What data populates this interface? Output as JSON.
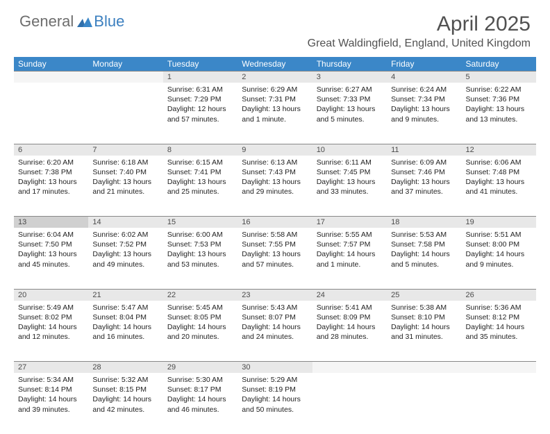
{
  "logo": {
    "text_general": "General",
    "text_blue": "Blue"
  },
  "title": "April 2025",
  "location": "Great Waldingfield, England, United Kingdom",
  "colors": {
    "header_bg": "#3b87c8",
    "header_text": "#ffffff",
    "daynum_bg": "#e8e8e8",
    "daynum_hl": "#d0d0d0",
    "border": "#888888",
    "logo_gray": "#6d6d6d",
    "logo_blue": "#3b7fbf",
    "title_color": "#515151"
  },
  "day_headers": [
    "Sunday",
    "Monday",
    "Tuesday",
    "Wednesday",
    "Thursday",
    "Friday",
    "Saturday"
  ],
  "weeks": [
    {
      "nums": [
        "",
        "",
        "1",
        "2",
        "3",
        "4",
        "5"
      ],
      "sunrise": [
        "",
        "",
        "Sunrise: 6:31 AM",
        "Sunrise: 6:29 AM",
        "Sunrise: 6:27 AM",
        "Sunrise: 6:24 AM",
        "Sunrise: 6:22 AM"
      ],
      "sunset": [
        "",
        "",
        "Sunset: 7:29 PM",
        "Sunset: 7:31 PM",
        "Sunset: 7:33 PM",
        "Sunset: 7:34 PM",
        "Sunset: 7:36 PM"
      ],
      "daylight": [
        "",
        "",
        "Daylight: 12 hours and 57 minutes.",
        "Daylight: 13 hours and 1 minute.",
        "Daylight: 13 hours and 5 minutes.",
        "Daylight: 13 hours and 9 minutes.",
        "Daylight: 13 hours and 13 minutes."
      ]
    },
    {
      "nums": [
        "6",
        "7",
        "8",
        "9",
        "10",
        "11",
        "12"
      ],
      "sunrise": [
        "Sunrise: 6:20 AM",
        "Sunrise: 6:18 AM",
        "Sunrise: 6:15 AM",
        "Sunrise: 6:13 AM",
        "Sunrise: 6:11 AM",
        "Sunrise: 6:09 AM",
        "Sunrise: 6:06 AM"
      ],
      "sunset": [
        "Sunset: 7:38 PM",
        "Sunset: 7:40 PM",
        "Sunset: 7:41 PM",
        "Sunset: 7:43 PM",
        "Sunset: 7:45 PM",
        "Sunset: 7:46 PM",
        "Sunset: 7:48 PM"
      ],
      "daylight": [
        "Daylight: 13 hours and 17 minutes.",
        "Daylight: 13 hours and 21 minutes.",
        "Daylight: 13 hours and 25 minutes.",
        "Daylight: 13 hours and 29 minutes.",
        "Daylight: 13 hours and 33 minutes.",
        "Daylight: 13 hours and 37 minutes.",
        "Daylight: 13 hours and 41 minutes."
      ]
    },
    {
      "nums": [
        "13",
        "14",
        "15",
        "16",
        "17",
        "18",
        "19"
      ],
      "hl": [
        true,
        false,
        false,
        false,
        false,
        false,
        false
      ],
      "sunrise": [
        "Sunrise: 6:04 AM",
        "Sunrise: 6:02 AM",
        "Sunrise: 6:00 AM",
        "Sunrise: 5:58 AM",
        "Sunrise: 5:55 AM",
        "Sunrise: 5:53 AM",
        "Sunrise: 5:51 AM"
      ],
      "sunset": [
        "Sunset: 7:50 PM",
        "Sunset: 7:52 PM",
        "Sunset: 7:53 PM",
        "Sunset: 7:55 PM",
        "Sunset: 7:57 PM",
        "Sunset: 7:58 PM",
        "Sunset: 8:00 PM"
      ],
      "daylight": [
        "Daylight: 13 hours and 45 minutes.",
        "Daylight: 13 hours and 49 minutes.",
        "Daylight: 13 hours and 53 minutes.",
        "Daylight: 13 hours and 57 minutes.",
        "Daylight: 14 hours and 1 minute.",
        "Daylight: 14 hours and 5 minutes.",
        "Daylight: 14 hours and 9 minutes."
      ]
    },
    {
      "nums": [
        "20",
        "21",
        "22",
        "23",
        "24",
        "25",
        "26"
      ],
      "sunrise": [
        "Sunrise: 5:49 AM",
        "Sunrise: 5:47 AM",
        "Sunrise: 5:45 AM",
        "Sunrise: 5:43 AM",
        "Sunrise: 5:41 AM",
        "Sunrise: 5:38 AM",
        "Sunrise: 5:36 AM"
      ],
      "sunset": [
        "Sunset: 8:02 PM",
        "Sunset: 8:04 PM",
        "Sunset: 8:05 PM",
        "Sunset: 8:07 PM",
        "Sunset: 8:09 PM",
        "Sunset: 8:10 PM",
        "Sunset: 8:12 PM"
      ],
      "daylight": [
        "Daylight: 14 hours and 12 minutes.",
        "Daylight: 14 hours and 16 minutes.",
        "Daylight: 14 hours and 20 minutes.",
        "Daylight: 14 hours and 24 minutes.",
        "Daylight: 14 hours and 28 minutes.",
        "Daylight: 14 hours and 31 minutes.",
        "Daylight: 14 hours and 35 minutes."
      ]
    },
    {
      "nums": [
        "27",
        "28",
        "29",
        "30",
        "",
        "",
        ""
      ],
      "sunrise": [
        "Sunrise: 5:34 AM",
        "Sunrise: 5:32 AM",
        "Sunrise: 5:30 AM",
        "Sunrise: 5:29 AM",
        "",
        "",
        ""
      ],
      "sunset": [
        "Sunset: 8:14 PM",
        "Sunset: 8:15 PM",
        "Sunset: 8:17 PM",
        "Sunset: 8:19 PM",
        "",
        "",
        ""
      ],
      "daylight": [
        "Daylight: 14 hours and 39 minutes.",
        "Daylight: 14 hours and 42 minutes.",
        "Daylight: 14 hours and 46 minutes.",
        "Daylight: 14 hours and 50 minutes.",
        "",
        "",
        ""
      ]
    }
  ]
}
